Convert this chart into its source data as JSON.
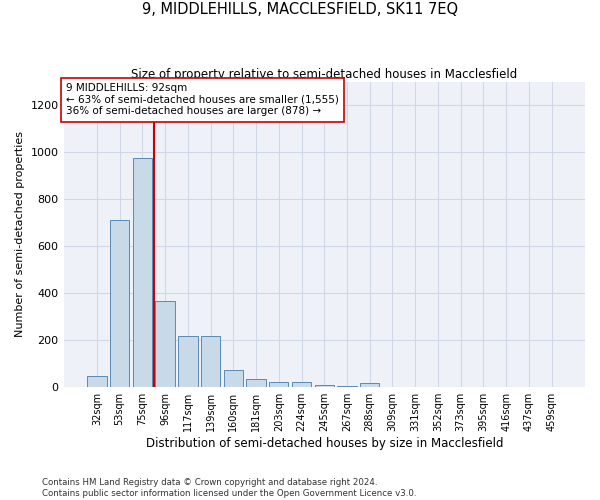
{
  "title": "9, MIDDLEHILLS, MACCLESFIELD, SK11 7EQ",
  "subtitle": "Size of property relative to semi-detached houses in Macclesfield",
  "xlabel": "Distribution of semi-detached houses by size in Macclesfield",
  "ylabel": "Number of semi-detached properties",
  "categories": [
    "32sqm",
    "53sqm",
    "75sqm",
    "96sqm",
    "117sqm",
    "139sqm",
    "160sqm",
    "181sqm",
    "203sqm",
    "224sqm",
    "245sqm",
    "267sqm",
    "288sqm",
    "309sqm",
    "331sqm",
    "352sqm",
    "373sqm",
    "395sqm",
    "416sqm",
    "437sqm",
    "459sqm"
  ],
  "values": [
    48,
    710,
    975,
    365,
    220,
    220,
    75,
    35,
    22,
    22,
    10,
    5,
    18,
    0,
    0,
    0,
    0,
    0,
    0,
    0,
    0
  ],
  "bar_color": "#c8d9e8",
  "bar_edge_color": "#5a8ab5",
  "subject_line_color": "#cc0000",
  "annotation_text": "9 MIDDLEHILLS: 92sqm\n← 63% of semi-detached houses are smaller (1,555)\n36% of semi-detached houses are larger (878) →",
  "annotation_box_color": "#ffffff",
  "annotation_box_edge_color": "#cc0000",
  "ylim": [
    0,
    1300
  ],
  "yticks": [
    0,
    200,
    400,
    600,
    800,
    1000,
    1200
  ],
  "footer": "Contains HM Land Registry data © Crown copyright and database right 2024.\nContains public sector information licensed under the Open Government Licence v3.0.",
  "grid_color": "#d0d8e8",
  "background_color": "#eef2f8"
}
